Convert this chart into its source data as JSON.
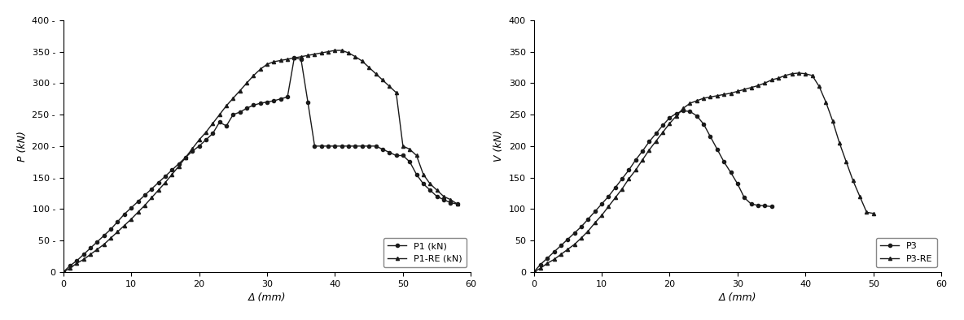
{
  "plot1": {
    "xlabel": "Δ (mm)",
    "ylabel": "P (kN)",
    "xlim": [
      0,
      60
    ],
    "ylim": [
      0,
      400
    ],
    "yticks": [
      0,
      50,
      100,
      150,
      200,
      250,
      300,
      350,
      400
    ],
    "xticks": [
      0,
      10,
      20,
      30,
      40,
      50,
      60
    ],
    "legend_labels": [
      "P1 (kN)",
      "P1-RE (kN)"
    ],
    "P1_x": [
      0,
      1,
      2,
      3,
      4,
      5,
      6,
      7,
      8,
      9,
      10,
      11,
      12,
      13,
      14,
      15,
      16,
      17,
      18,
      19,
      20,
      21,
      22,
      23,
      24,
      25,
      26,
      27,
      28,
      29,
      30,
      31,
      32,
      33,
      34,
      35,
      36,
      37,
      38,
      39,
      40,
      41,
      42,
      43,
      44,
      45,
      46,
      47,
      48,
      49,
      50,
      51,
      52,
      53,
      54,
      55,
      56,
      57,
      58
    ],
    "P1_y": [
      0,
      10,
      18,
      28,
      38,
      48,
      58,
      68,
      80,
      92,
      102,
      112,
      122,
      132,
      142,
      152,
      162,
      172,
      182,
      192,
      200,
      210,
      220,
      238,
      232,
      250,
      254,
      260,
      265,
      268,
      270,
      272,
      275,
      278,
      340,
      338,
      270,
      200,
      200,
      200,
      200,
      200,
      200,
      200,
      200,
      200,
      200,
      195,
      190,
      185,
      185,
      175,
      155,
      140,
      130,
      120,
      115,
      110,
      108
    ],
    "P1RE_x": [
      0,
      1,
      2,
      3,
      4,
      5,
      6,
      7,
      8,
      9,
      10,
      11,
      12,
      13,
      14,
      15,
      16,
      17,
      18,
      19,
      20,
      21,
      22,
      23,
      24,
      25,
      26,
      27,
      28,
      29,
      30,
      31,
      32,
      33,
      34,
      35,
      36,
      37,
      38,
      39,
      40,
      41,
      42,
      43,
      44,
      45,
      46,
      47,
      48,
      49,
      50,
      51,
      52,
      53,
      54,
      55,
      56,
      57,
      58
    ],
    "P1RE_y": [
      0,
      6,
      14,
      20,
      28,
      36,
      44,
      54,
      64,
      74,
      84,
      95,
      106,
      118,
      130,
      142,
      155,
      168,
      182,
      196,
      210,
      222,
      236,
      250,
      264,
      276,
      288,
      300,
      312,
      322,
      330,
      334,
      336,
      338,
      340,
      342,
      344,
      346,
      348,
      350,
      352,
      352,
      348,
      342,
      335,
      325,
      315,
      305,
      295,
      285,
      200,
      195,
      185,
      155,
      140,
      130,
      120,
      115,
      108
    ]
  },
  "plot2": {
    "xlabel": "Δ (mm)",
    "ylabel": "V (kN)",
    "xlim": [
      0,
      60
    ],
    "ylim": [
      0,
      400
    ],
    "yticks": [
      0,
      50,
      100,
      150,
      200,
      250,
      300,
      350,
      400
    ],
    "xticks": [
      0,
      10,
      20,
      30,
      40,
      50,
      60
    ],
    "legend_labels": [
      "P3",
      "P3-RE"
    ],
    "P3_x": [
      0,
      1,
      2,
      3,
      4,
      5,
      6,
      7,
      8,
      9,
      10,
      11,
      12,
      13,
      14,
      15,
      16,
      17,
      18,
      19,
      20,
      21,
      22,
      23,
      24,
      25,
      26,
      27,
      28,
      29,
      30,
      31,
      32,
      33,
      34,
      35
    ],
    "P3_y": [
      0,
      12,
      22,
      32,
      42,
      52,
      62,
      72,
      84,
      96,
      108,
      120,
      134,
      148,
      162,
      178,
      192,
      207,
      220,
      233,
      245,
      252,
      256,
      255,
      248,
      235,
      215,
      195,
      175,
      158,
      140,
      118,
      108,
      106,
      105,
      104
    ],
    "P3RE_x": [
      0,
      1,
      2,
      3,
      4,
      5,
      6,
      7,
      8,
      9,
      10,
      11,
      12,
      13,
      14,
      15,
      16,
      17,
      18,
      19,
      20,
      21,
      22,
      23,
      24,
      25,
      26,
      27,
      28,
      29,
      30,
      31,
      32,
      33,
      34,
      35,
      36,
      37,
      38,
      39,
      40,
      41,
      42,
      43,
      44,
      45,
      46,
      47,
      48,
      49,
      50
    ],
    "P3RE_y": [
      0,
      6,
      14,
      20,
      28,
      36,
      44,
      54,
      65,
      78,
      90,
      104,
      118,
      132,
      148,
      162,
      178,
      194,
      208,
      222,
      236,
      248,
      260,
      268,
      272,
      276,
      278,
      280,
      282,
      284,
      287,
      290,
      293,
      296,
      300,
      305,
      308,
      312,
      315,
      316,
      315,
      312,
      295,
      270,
      240,
      205,
      175,
      145,
      120,
      95,
      93
    ]
  },
  "line_color": "#1a1a1a",
  "marker_circle": "o",
  "marker_triangle": "^",
  "markersize": 3,
  "linewidth": 1.0,
  "fontsize_label": 9,
  "fontsize_tick": 8,
  "fontsize_legend": 8,
  "bg_color": "#ffffff"
}
